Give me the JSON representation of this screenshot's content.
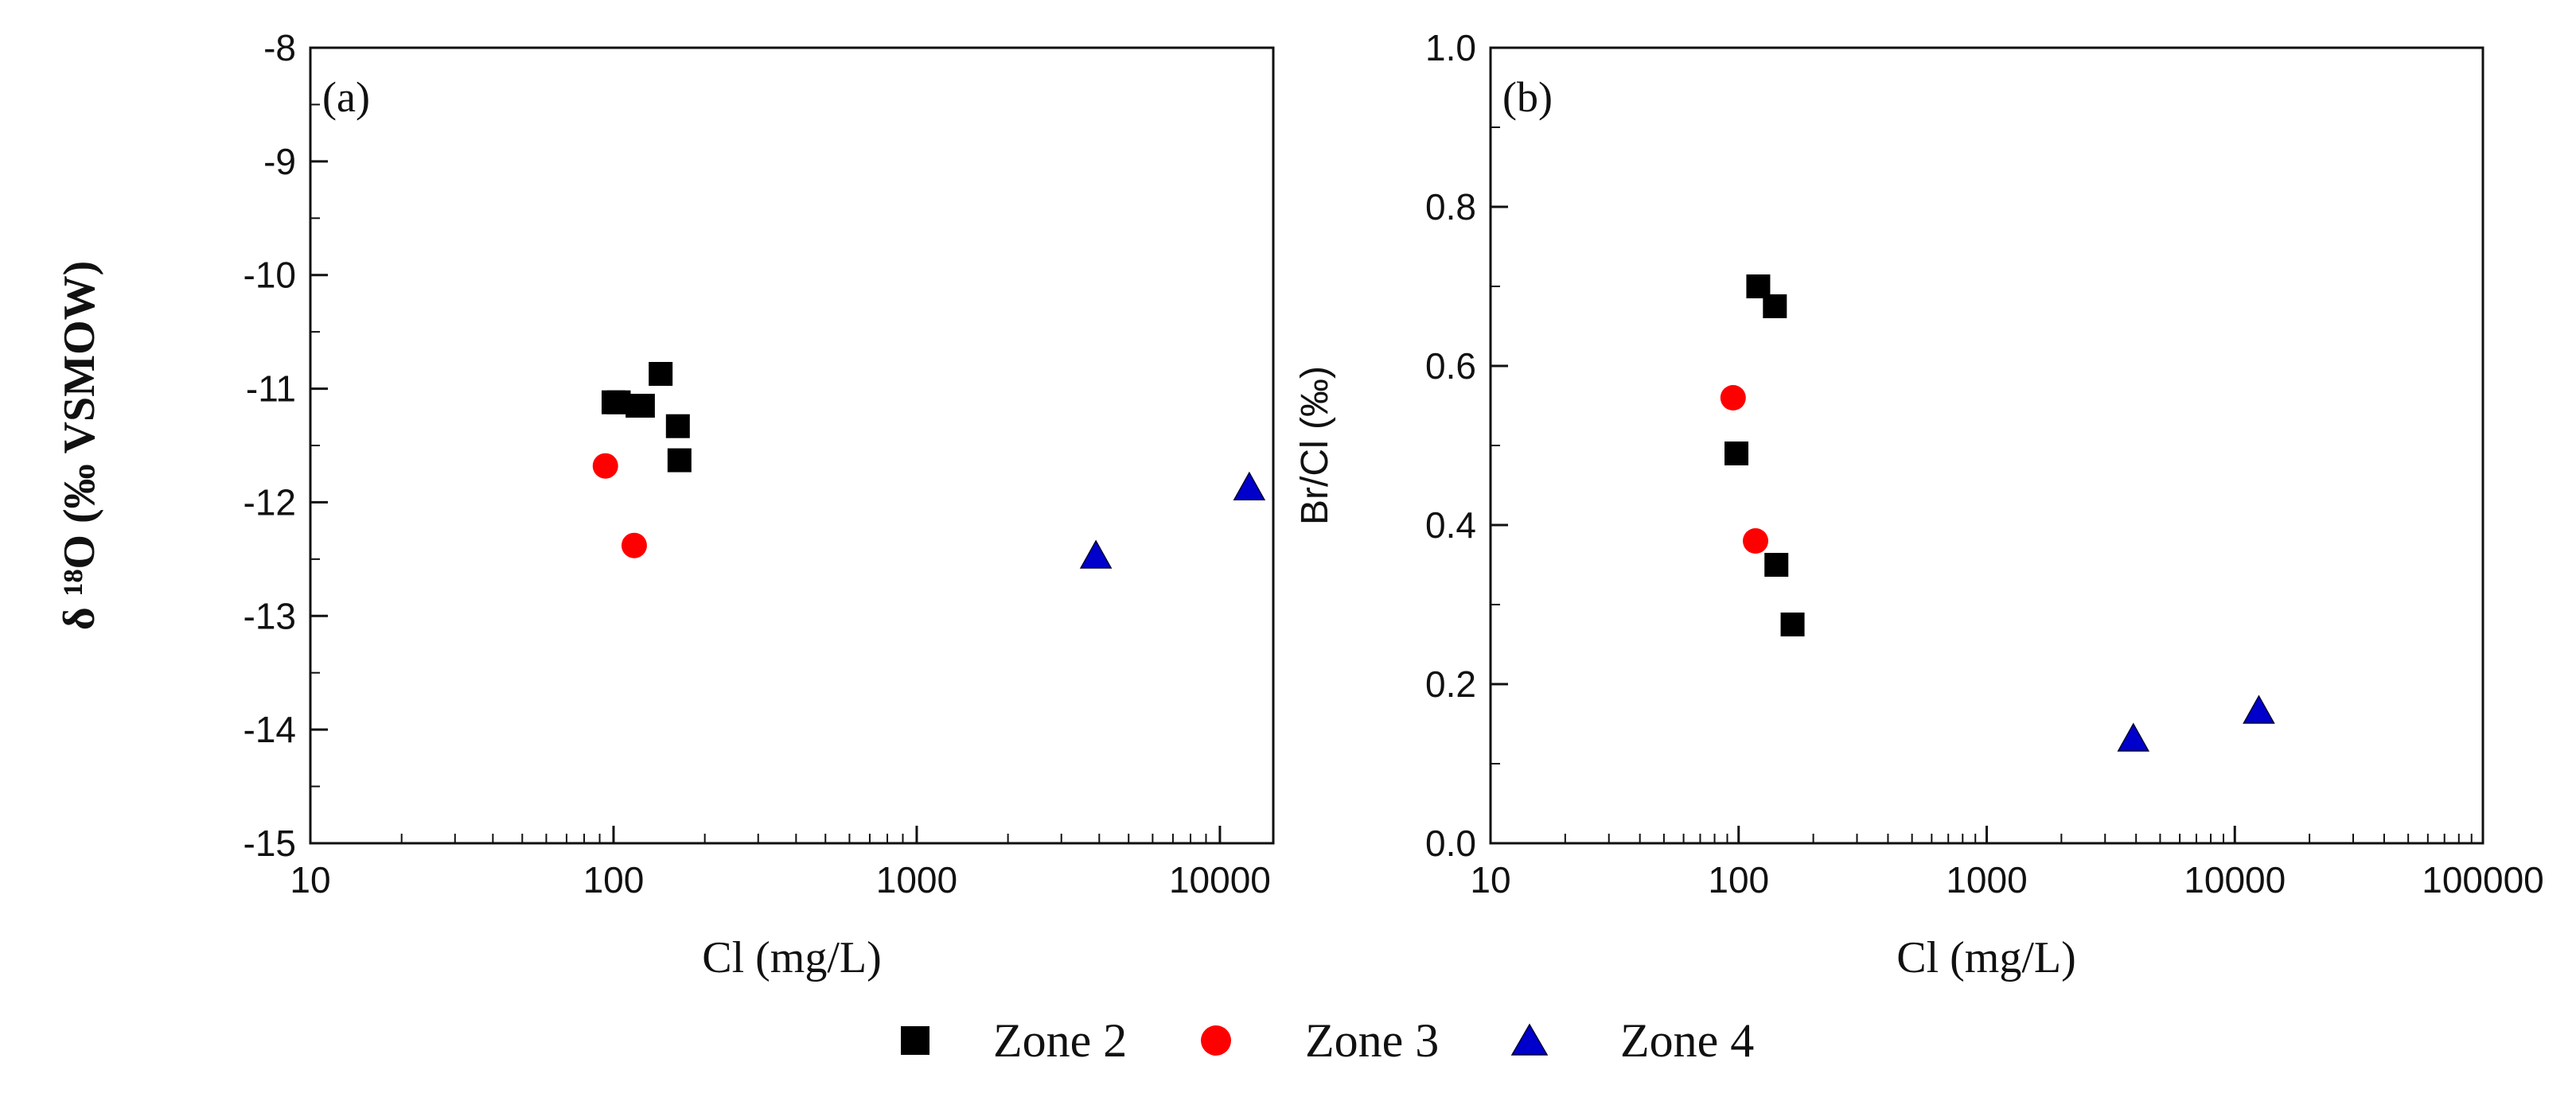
{
  "chart_data": [
    {
      "type": "scatter",
      "panel_label": "(a)",
      "title": "",
      "xlabel": "Cl (mg/L)",
      "ylabel": "δ ¹⁸O (‰ VSMOW)",
      "xscale": "log",
      "xlim": [
        10,
        15000
      ],
      "ylim": [
        -15,
        -8
      ],
      "xticks": [
        10,
        100,
        1000,
        10000
      ],
      "xtick_labels": [
        "10",
        "100",
        "1000",
        "10000"
      ],
      "yticks": [
        -15,
        -14,
        -13,
        -12,
        -11,
        -10,
        -9,
        -8
      ],
      "ytick_labels": [
        "-15",
        "-14",
        "-13",
        "-12",
        "-11",
        "-10",
        "-9",
        "-8"
      ],
      "series": [
        {
          "name": "Zone 2",
          "color": "#000000",
          "marker": "square",
          "x": [
            100,
            104,
            120,
            125,
            143,
            163,
            165
          ],
          "y": [
            -11.12,
            -11.12,
            -11.15,
            -11.15,
            -10.87,
            -11.33,
            -11.63
          ]
        },
        {
          "name": "Zone 3",
          "color": "#ff0000",
          "marker": "circle",
          "x": [
            94,
            117
          ],
          "y": [
            -11.68,
            -12.38
          ]
        },
        {
          "name": "Zone 4",
          "color": "#0000cc",
          "marker": "triangle",
          "x": [
            3900,
            12500
          ],
          "y": [
            -12.48,
            -11.88
          ]
        }
      ]
    },
    {
      "type": "scatter",
      "panel_label": "(b)",
      "title": "",
      "xlabel": "Cl (mg/L)",
      "ylabel": "Br/Cl (‰)",
      "xscale": "log",
      "xlim": [
        10,
        100000
      ],
      "ylim": [
        0.0,
        1.0
      ],
      "xticks": [
        10,
        100,
        1000,
        10000,
        100000
      ],
      "xtick_labels": [
        "10",
        "100",
        "1000",
        "10000",
        "100000"
      ],
      "yticks": [
        0.0,
        0.2,
        0.4,
        0.6,
        0.8,
        1.0
      ],
      "ytick_labels": [
        "0.0",
        "0.2",
        "0.4",
        "0.6",
        "0.8",
        "1.0"
      ],
      "series": [
        {
          "name": "Zone 2",
          "color": "#000000",
          "marker": "square",
          "x": [
            98,
            120,
            140,
            142,
            165
          ],
          "y": [
            0.49,
            0.7,
            0.675,
            0.35,
            0.275
          ]
        },
        {
          "name": "Zone 3",
          "color": "#ff0000",
          "marker": "circle",
          "x": [
            95,
            117
          ],
          "y": [
            0.56,
            0.38
          ]
        },
        {
          "name": "Zone 4",
          "color": "#0000cc",
          "marker": "triangle",
          "x": [
            3900,
            12500
          ],
          "y": [
            0.13,
            0.165
          ]
        }
      ]
    }
  ],
  "legend": {
    "items": [
      {
        "label": "Zone 2",
        "color": "#000000",
        "marker": "square"
      },
      {
        "label": "Zone 3",
        "color": "#ff0000",
        "marker": "circle"
      },
      {
        "label": "Zone 4",
        "color": "#0000cc",
        "marker": "triangle"
      }
    ]
  }
}
